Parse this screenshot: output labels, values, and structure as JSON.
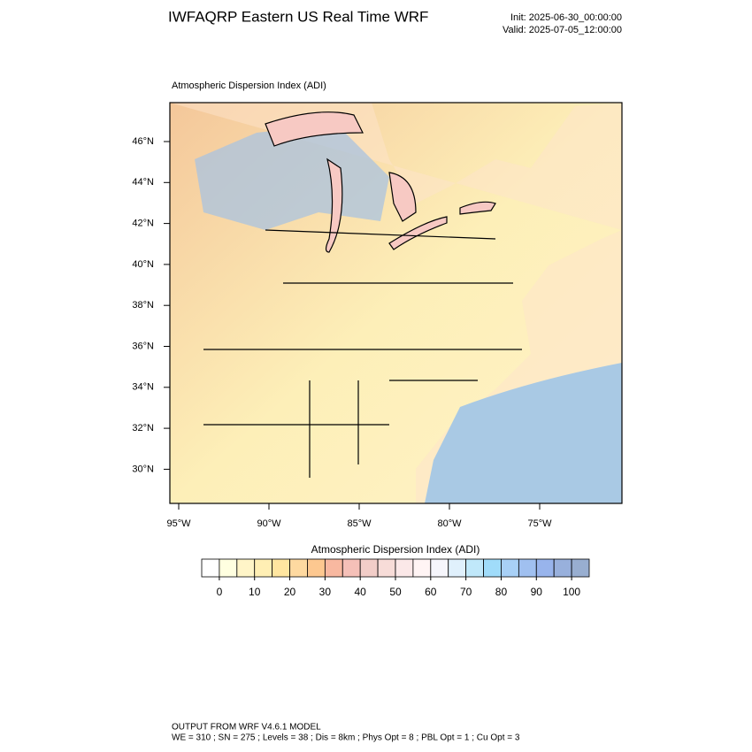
{
  "header": {
    "title": "IWFAQRP Eastern US Real Time WRF",
    "init": "Init: 2025-06-30_00:00:00",
    "valid": "Valid: 2025-07-05_12:00:00"
  },
  "map": {
    "subtitle": "Atmospheric Dispersion Index   (ADI)",
    "lat_labels": [
      "46°N",
      "44°N",
      "42°N",
      "40°N",
      "38°N",
      "36°N",
      "34°N",
      "32°N",
      "30°N"
    ],
    "lon_labels": [
      "95°W",
      "90°W",
      "85°W",
      "80°W",
      "75°W"
    ]
  },
  "colorbar": {
    "title": "Atmospheric Dispersion Index  (ADI)",
    "lim": [
      -5,
      105
    ],
    "ticks": [
      0,
      10,
      20,
      30,
      40,
      50,
      60,
      70,
      80,
      90,
      100
    ],
    "colors": [
      "#ffffff",
      "#ffffe0",
      "#fff5c8",
      "#ffefb4",
      "#ffe6a0",
      "#fed9a0",
      "#fdc890",
      "#f8b8a0",
      "#f5c0b8",
      "#f2cdc8",
      "#f7dcd8",
      "#fbe8e8",
      "#fff4f4",
      "#f6f6fc",
      "#e0f0fc",
      "#c0e8fa",
      "#a0dcfa",
      "#a8d0f6",
      "#a0c0f0",
      "#98b4ec",
      "#98b0dc",
      "#98aed0"
    ]
  },
  "footer": {
    "line1": "OUTPUT FROM WRF V4.6.1 MODEL",
    "line2": "WE = 310 ; SN = 275 ; Levels = 38 ; Dis = 8km ; Phys Opt = 8 ; PBL Opt = 1 ; Cu Opt = 3"
  }
}
